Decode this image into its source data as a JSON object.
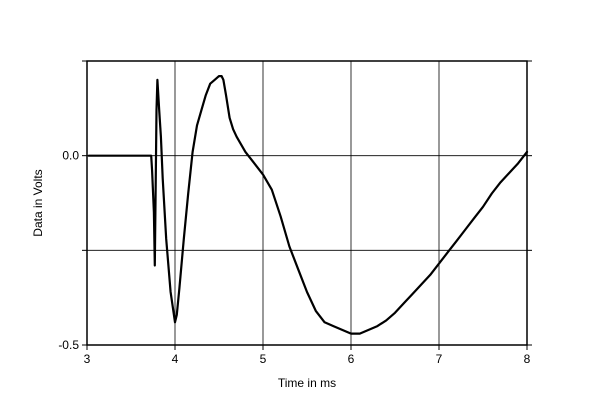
{
  "chart_data": {
    "type": "line",
    "xlabel": "Time in ms",
    "ylabel": "Data in Volts",
    "xlim": [
      3,
      8
    ],
    "ylim": [
      -0.5,
      0.25
    ],
    "grid": true,
    "x_ticks": [
      3,
      4,
      5,
      6,
      7,
      8
    ],
    "x_tick_labels": [
      "3",
      "4",
      "5",
      "6",
      "7",
      "8"
    ],
    "y_ticks": [
      -0.5,
      -0.25,
      0,
      0.25
    ],
    "y_tick_labels": [
      {
        "value": -0.5,
        "label": "-0.5"
      },
      {
        "value": 0.0,
        "label": "0.0"
      }
    ],
    "series": [
      {
        "color": "#000000",
        "x": [
          3.02,
          3.73,
          3.74,
          3.76,
          3.77,
          3.78,
          3.79,
          3.8,
          3.82,
          3.84,
          3.86,
          3.9,
          3.95,
          4.0,
          4.02,
          4.05,
          4.1,
          4.15,
          4.2,
          4.25,
          4.3,
          4.35,
          4.4,
          4.45,
          4.5,
          4.53,
          4.55,
          4.58,
          4.62,
          4.66,
          4.7,
          4.75,
          4.8,
          4.9,
          5.0,
          5.1,
          5.2,
          5.3,
          5.4,
          5.5,
          5.6,
          5.7,
          5.8,
          5.9,
          6.0,
          6.05,
          6.1,
          6.15,
          6.2,
          6.3,
          6.4,
          6.5,
          6.6,
          6.7,
          6.8,
          6.9,
          7.0,
          7.1,
          7.2,
          7.3,
          7.4,
          7.5,
          7.6,
          7.7,
          7.8,
          7.9,
          8.0
        ],
        "y": [
          0.0,
          0.0,
          -0.04,
          -0.15,
          -0.29,
          -0.1,
          0.12,
          0.2,
          0.12,
          0.05,
          -0.06,
          -0.22,
          -0.36,
          -0.44,
          -0.42,
          -0.35,
          -0.22,
          -0.1,
          0.01,
          0.08,
          0.12,
          0.16,
          0.19,
          0.2,
          0.21,
          0.21,
          0.2,
          0.16,
          0.1,
          0.07,
          0.05,
          0.03,
          0.01,
          -0.02,
          -0.05,
          -0.09,
          -0.16,
          -0.24,
          -0.3,
          -0.36,
          -0.41,
          -0.44,
          -0.45,
          -0.46,
          -0.47,
          -0.47,
          -0.47,
          -0.465,
          -0.46,
          -0.45,
          -0.435,
          -0.415,
          -0.39,
          -0.365,
          -0.34,
          -0.315,
          -0.285,
          -0.255,
          -0.225,
          -0.195,
          -0.165,
          -0.135,
          -0.1,
          -0.07,
          -0.045,
          -0.02,
          0.01
        ]
      }
    ]
  }
}
